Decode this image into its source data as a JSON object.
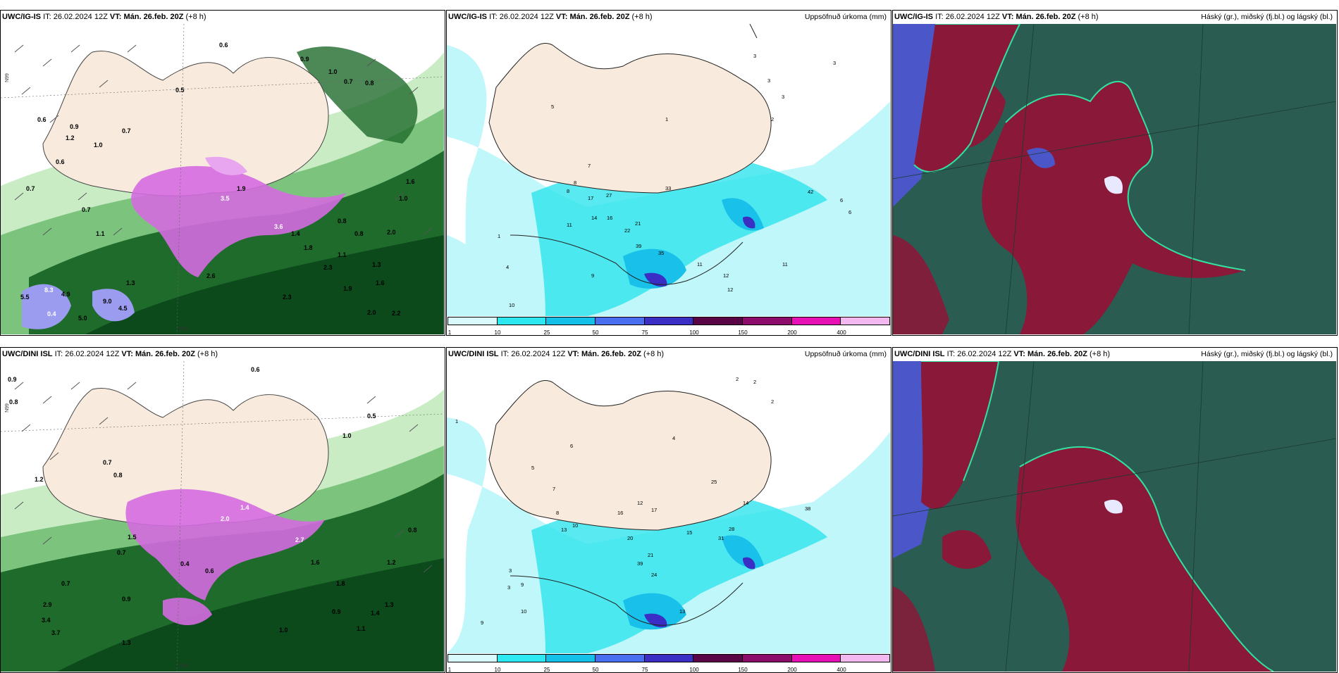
{
  "rows": [
    {
      "model": "UWC/IG-IS",
      "it_label": "IT:",
      "it_value": "26.02.2024 12Z",
      "vt_label": "VT:",
      "vt_value": "Mán. 26.feb. 20Z",
      "lead": "(+8 h)",
      "lat_label": "N99",
      "lon_label": "20W",
      "precip_title": "Uppsöfnuð úrkoma (mm)",
      "cloud_title": "Háský (gr.), miðský (fj.bl.) og lágský (bl.)",
      "left_values": [
        "0.6",
        "0.9",
        "1.0",
        "0.7",
        "0.8",
        "0.5",
        "0.6",
        "0.9",
        "1.2",
        "1.0",
        "0.7",
        "0.6",
        "0.7",
        "1.1",
        "1.9",
        "3.5",
        "2.6",
        "3.6",
        "1.4",
        "1.0",
        "1.8",
        "2.0",
        "2.3",
        "0.8",
        "1.1",
        "1.9",
        "2.2",
        "1.6",
        "5.5",
        "8.3",
        "4.9",
        "9.0",
        "4.5",
        "5.0",
        "2.0",
        "0.4",
        "1.3",
        "1.6",
        "1.3",
        "0.7",
        "0.8",
        "2.3"
      ],
      "precip_values": [
        "1",
        "3",
        "3",
        "3",
        "3",
        "2",
        "1",
        "4",
        "5",
        "6",
        "7",
        "8",
        "11",
        "14",
        "16",
        "17",
        "21",
        "22",
        "27",
        "33",
        "35",
        "39",
        "42",
        "11",
        "12",
        "9",
        "8",
        "10",
        "11",
        "12",
        "6"
      ]
    },
    {
      "model": "UWC/DINI ISL",
      "it_label": "IT:",
      "it_value": "26.02.2024 12Z",
      "vt_label": "VT:",
      "vt_value": "Mán. 26.feb. 20Z",
      "lead": "(+8 h)",
      "lat_label": "N99",
      "lon_label": "20W",
      "precip_title": "Uppsöfnuð úrkoma (mm)",
      "cloud_title": "Háský (gr.), miðský (fj.bl.) og lágský (bl.)",
      "left_values": [
        "0.6",
        "0.9",
        "0.8",
        "1.0",
        "0.5",
        "0.7",
        "0.8",
        "1.2",
        "2.0",
        "1.4",
        "0.4",
        "0.6",
        "0.7",
        "2.7",
        "1.6",
        "1.8",
        "3.4",
        "2.9",
        "3.7",
        "1.3",
        "0.9",
        "1.1",
        "1.0",
        "1.3",
        "1.4",
        "0.8",
        "0.9",
        "1.2",
        "0.7",
        "1.5"
      ],
      "precip_values": [
        "1",
        "2",
        "2",
        "2",
        "3",
        "4",
        "5",
        "6",
        "7",
        "8",
        "9",
        "10",
        "12",
        "13",
        "15",
        "16",
        "17",
        "20",
        "21",
        "24",
        "25",
        "28",
        "31",
        "38",
        "39",
        "13",
        "14",
        "10",
        "9",
        "3"
      ]
    }
  ],
  "colorbar": {
    "labels": [
      "1",
      "10",
      "25",
      "50",
      "75",
      "100",
      "150",
      "200",
      "400"
    ],
    "colors": [
      "#d8fafc",
      "#2de8f0",
      "#14bfe8",
      "#4a6ef0",
      "#3a2ec4",
      "#5a0646",
      "#8c0c6c",
      "#e610b4",
      "#f4b8f0"
    ]
  },
  "colors": {
    "land": "#f8eadc",
    "precip_light": "#bff7fa",
    "precip_cyan": "#2fe3ee",
    "precip_mid": "#18c0ea",
    "green_light": "#c9ecc5",
    "green_mid": "#7cc47e",
    "green_dark": "#1f6b2c",
    "green_deep": "#0c4a1c",
    "purple": "#d46ce0",
    "cloud_teal": "#2b5c51",
    "cloud_maroon": "#8a1838",
    "cloud_blue": "#4b57c8",
    "cloud_mint": "#33e0a0"
  }
}
